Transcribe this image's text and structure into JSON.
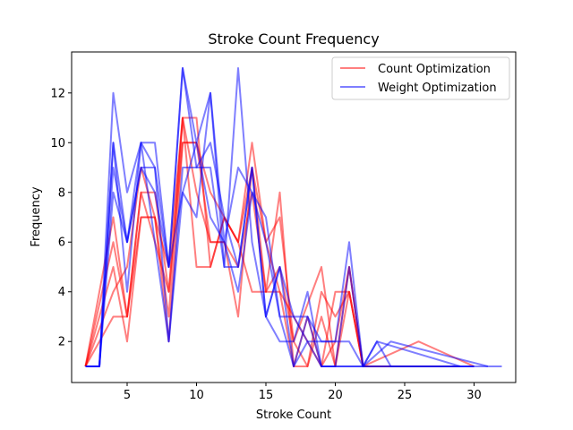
{
  "chart_data": {
    "type": "line",
    "title": "Stroke Count Frequency",
    "xlabel": "Stroke Count",
    "ylabel": "Frequency",
    "xlim": [
      1,
      33
    ],
    "ylim": [
      0.35,
      13.65
    ],
    "xticks": [
      5,
      10,
      15,
      20,
      25,
      30
    ],
    "yticks": [
      2,
      4,
      6,
      8,
      10,
      12
    ],
    "grid": false,
    "legend_position": "upper-right",
    "legend": [
      {
        "label": "Count Optimization",
        "color": "#ff0000"
      },
      {
        "label": "Weight Optimization",
        "color": "#0000ff"
      }
    ],
    "groups": [
      {
        "label": "Count Optimization",
        "color": "#ff0000",
        "alpha": 0.5,
        "series": [
          {
            "x": [
              2,
              4,
              5,
              6,
              7,
              8,
              9,
              10,
              11,
              12,
              13,
              14,
              15,
              16,
              17,
              19,
              20,
              21,
              22,
              26,
              29
            ],
            "y": [
              1,
              7,
              3,
              8,
              8,
              4,
              11,
              11,
              5,
              7,
              6,
              10,
              6,
              7,
              2,
              5,
              1,
              5,
              1,
              1,
              1
            ]
          },
          {
            "x": [
              2,
              4,
              5,
              6,
              7,
              8,
              9,
              10,
              11,
              12,
              13,
              14,
              15,
              16,
              17,
              18,
              19,
              20,
              21,
              22,
              26,
              30
            ],
            "y": [
              1,
              5,
              2,
              7,
              7,
              2,
              10,
              10,
              6,
              6,
              3,
              9,
              4,
              8,
              1,
              1,
              4,
              3,
              4,
              1,
              2,
              1
            ]
          },
          {
            "x": [
              2,
              3,
              4,
              5,
              6,
              7,
              8,
              9,
              10,
              11,
              12,
              13,
              14,
              15,
              16,
              17,
              19,
              20,
              21,
              22,
              24,
              29
            ],
            "y": [
              1,
              2,
              3,
              3,
              7,
              7,
              5,
              11,
              5,
              5,
              7,
              6,
              4,
              4,
              4,
              3,
              1,
              4,
              4,
              1,
              1,
              1
            ]
          },
          {
            "x": [
              2,
              4,
              5,
              6,
              7,
              8,
              9,
              10,
              11,
              12,
              13,
              14,
              15,
              16,
              17,
              18,
              19,
              20,
              21,
              22,
              28
            ],
            "y": [
              1,
              6,
              3,
              8,
              6,
              4,
              10,
              10,
              8,
              7,
              6,
              9,
              6,
              4,
              1,
              3,
              1,
              2,
              5,
              1,
              1
            ]
          },
          {
            "x": [
              2,
              4,
              5,
              6,
              7,
              8,
              9,
              10,
              11,
              12,
              13,
              14,
              15,
              16,
              17,
              18,
              19,
              20,
              21,
              22,
              25
            ],
            "y": [
              1,
              4,
              5,
              9,
              7,
              3,
              11,
              8,
              6,
              6,
              5,
              8,
              4,
              5,
              2,
              1,
              3,
              1,
              4,
              1,
              1
            ]
          }
        ]
      },
      {
        "label": "Weight Optimization",
        "color": "#0000ff",
        "alpha": 0.5,
        "series": [
          {
            "x": [
              2,
              3,
              4,
              5,
              6,
              7,
              8,
              9,
              10,
              11,
              12,
              13,
              14,
              15,
              16,
              17,
              18,
              19,
              20,
              21,
              22,
              23,
              24,
              25,
              32
            ],
            "y": [
              1,
              1,
              12,
              8,
              10,
              10,
              5,
              13,
              9,
              9,
              5,
              13,
              6,
              3,
              2,
              2,
              4,
              1,
              1,
              1,
              1,
              2,
              1,
              1,
              1
            ]
          },
          {
            "x": [
              2,
              3,
              4,
              5,
              6,
              7,
              8,
              9,
              10,
              11,
              12,
              13,
              14,
              15,
              16,
              17,
              18,
              19,
              20,
              21,
              22,
              24,
              31
            ],
            "y": [
              1,
              1,
              10,
              6,
              10,
              9,
              5,
              13,
              10,
              12,
              6,
              9,
              8,
              6,
              3,
              3,
              2,
              2,
              2,
              6,
              1,
              2,
              1
            ]
          },
          {
            "x": [
              2,
              3,
              4,
              5,
              6,
              7,
              8,
              9,
              10,
              11,
              12,
              13,
              14,
              15,
              16,
              17,
              18,
              19,
              20,
              21,
              22,
              23,
              29
            ],
            "y": [
              1,
              1,
              9,
              6,
              9,
              9,
              2,
              8,
              7,
              12,
              5,
              5,
              9,
              3,
              5,
              3,
              3,
              2,
              2,
              2,
              1,
              2,
              1
            ]
          },
          {
            "x": [
              2,
              3,
              4,
              5,
              6,
              7,
              8,
              9,
              10,
              11,
              12,
              13,
              14,
              15,
              16,
              17,
              18,
              19,
              20,
              21,
              22,
              30
            ],
            "y": [
              1,
              1,
              8,
              6,
              9,
              8,
              5,
              8,
              10,
              7,
              6,
              4,
              8,
              7,
              3,
              1,
              2,
              1,
              1,
              5,
              1,
              1
            ]
          },
          {
            "x": [
              2,
              3,
              4,
              5,
              6,
              7,
              8,
              9,
              10,
              11,
              12,
              13,
              14,
              15,
              16,
              17,
              18,
              19,
              20,
              21,
              22,
              30
            ],
            "y": [
              1,
              1,
              10,
              4,
              10,
              6,
              2,
              9,
              9,
              10,
              7,
              5,
              9,
              3,
              5,
              1,
              3,
              1,
              1,
              1,
              1,
              1
            ]
          }
        ]
      }
    ]
  }
}
